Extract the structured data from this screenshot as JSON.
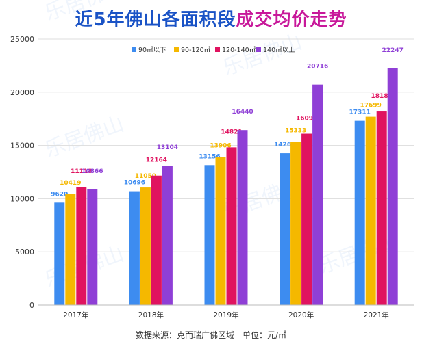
{
  "title_part1": "近5年佛山各面积段",
  "title_part2": "成交均价走势",
  "source": "数据来源：克而瑞广佛区域",
  "unit": "单位：元/㎡",
  "watermark": "乐居佛山",
  "colors": {
    "title_blue": "#1a53c6",
    "title_pink": "#c8189a",
    "s1": "#3d8cf0",
    "s2": "#f5b800",
    "s3": "#e0135f",
    "s4": "#8f3fd6"
  },
  "chart_data": {
    "type": "bar",
    "categories": [
      "2017年",
      "2018年",
      "2019年",
      "2020年",
      "2021年"
    ],
    "series": [
      {
        "name": "90㎡以下",
        "values": [
          9620,
          10696,
          13156,
          14262,
          17311
        ]
      },
      {
        "name": "90-120㎡",
        "values": [
          10419,
          11050,
          13906,
          15333,
          17699
        ]
      },
      {
        "name": "120-140㎡",
        "values": [
          11118,
          12164,
          14821,
          16098,
          18185
        ]
      },
      {
        "name": "140㎡以上",
        "values": [
          10866,
          13104,
          16440,
          20716,
          22247
        ]
      }
    ],
    "yticks": [
      0,
      5000,
      10000,
      15000,
      20000,
      25000
    ],
    "ylim": [
      0,
      25000
    ],
    "legend": "top-right",
    "grid": true
  }
}
